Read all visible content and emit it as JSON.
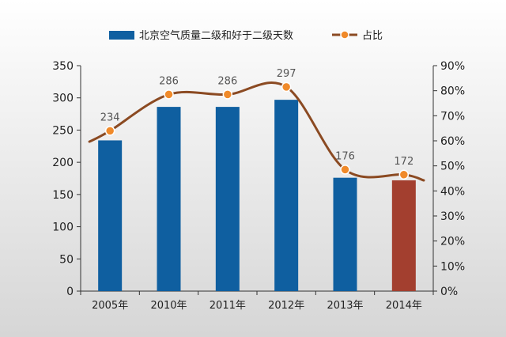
{
  "colors": {
    "bar": "#0F5FA0",
    "bar_highlight": "#A33F2F",
    "line": "#8B4A22",
    "marker_fill": "#F08A2A",
    "axis": "#333333",
    "value_label": "#555555",
    "background_top": "#FFFFFF",
    "background_bottom": "#D6D6D6"
  },
  "chart_data": {
    "type": "bar",
    "categories": [
      "2005年",
      "2010年",
      "2011年",
      "2012年",
      "2013年",
      "2014年"
    ],
    "series": [
      {
        "name": "北京空气质量二级和好于二级天数",
        "type": "bar",
        "axis": "left",
        "values": [
          234,
          286,
          286,
          297,
          176,
          172
        ],
        "data_labels": [
          "234",
          "286",
          "286",
          "297",
          "176",
          "172"
        ],
        "highlight_index": 5
      },
      {
        "name": "占比",
        "type": "line",
        "axis": "right",
        "values": [
          64,
          78.5,
          78.5,
          81.5,
          48.5,
          46.5
        ]
      }
    ],
    "y_left": {
      "min": 0,
      "max": 350,
      "ticks": [
        "0",
        "50",
        "100",
        "150",
        "200",
        "250",
        "300",
        "350"
      ]
    },
    "y_right": {
      "min": 0,
      "max": 90,
      "ticks": [
        "0%",
        "10%",
        "20%",
        "30%",
        "40%",
        "50%",
        "60%",
        "70%",
        "80%",
        "90%"
      ]
    },
    "legend": "top-center",
    "grid": false
  }
}
